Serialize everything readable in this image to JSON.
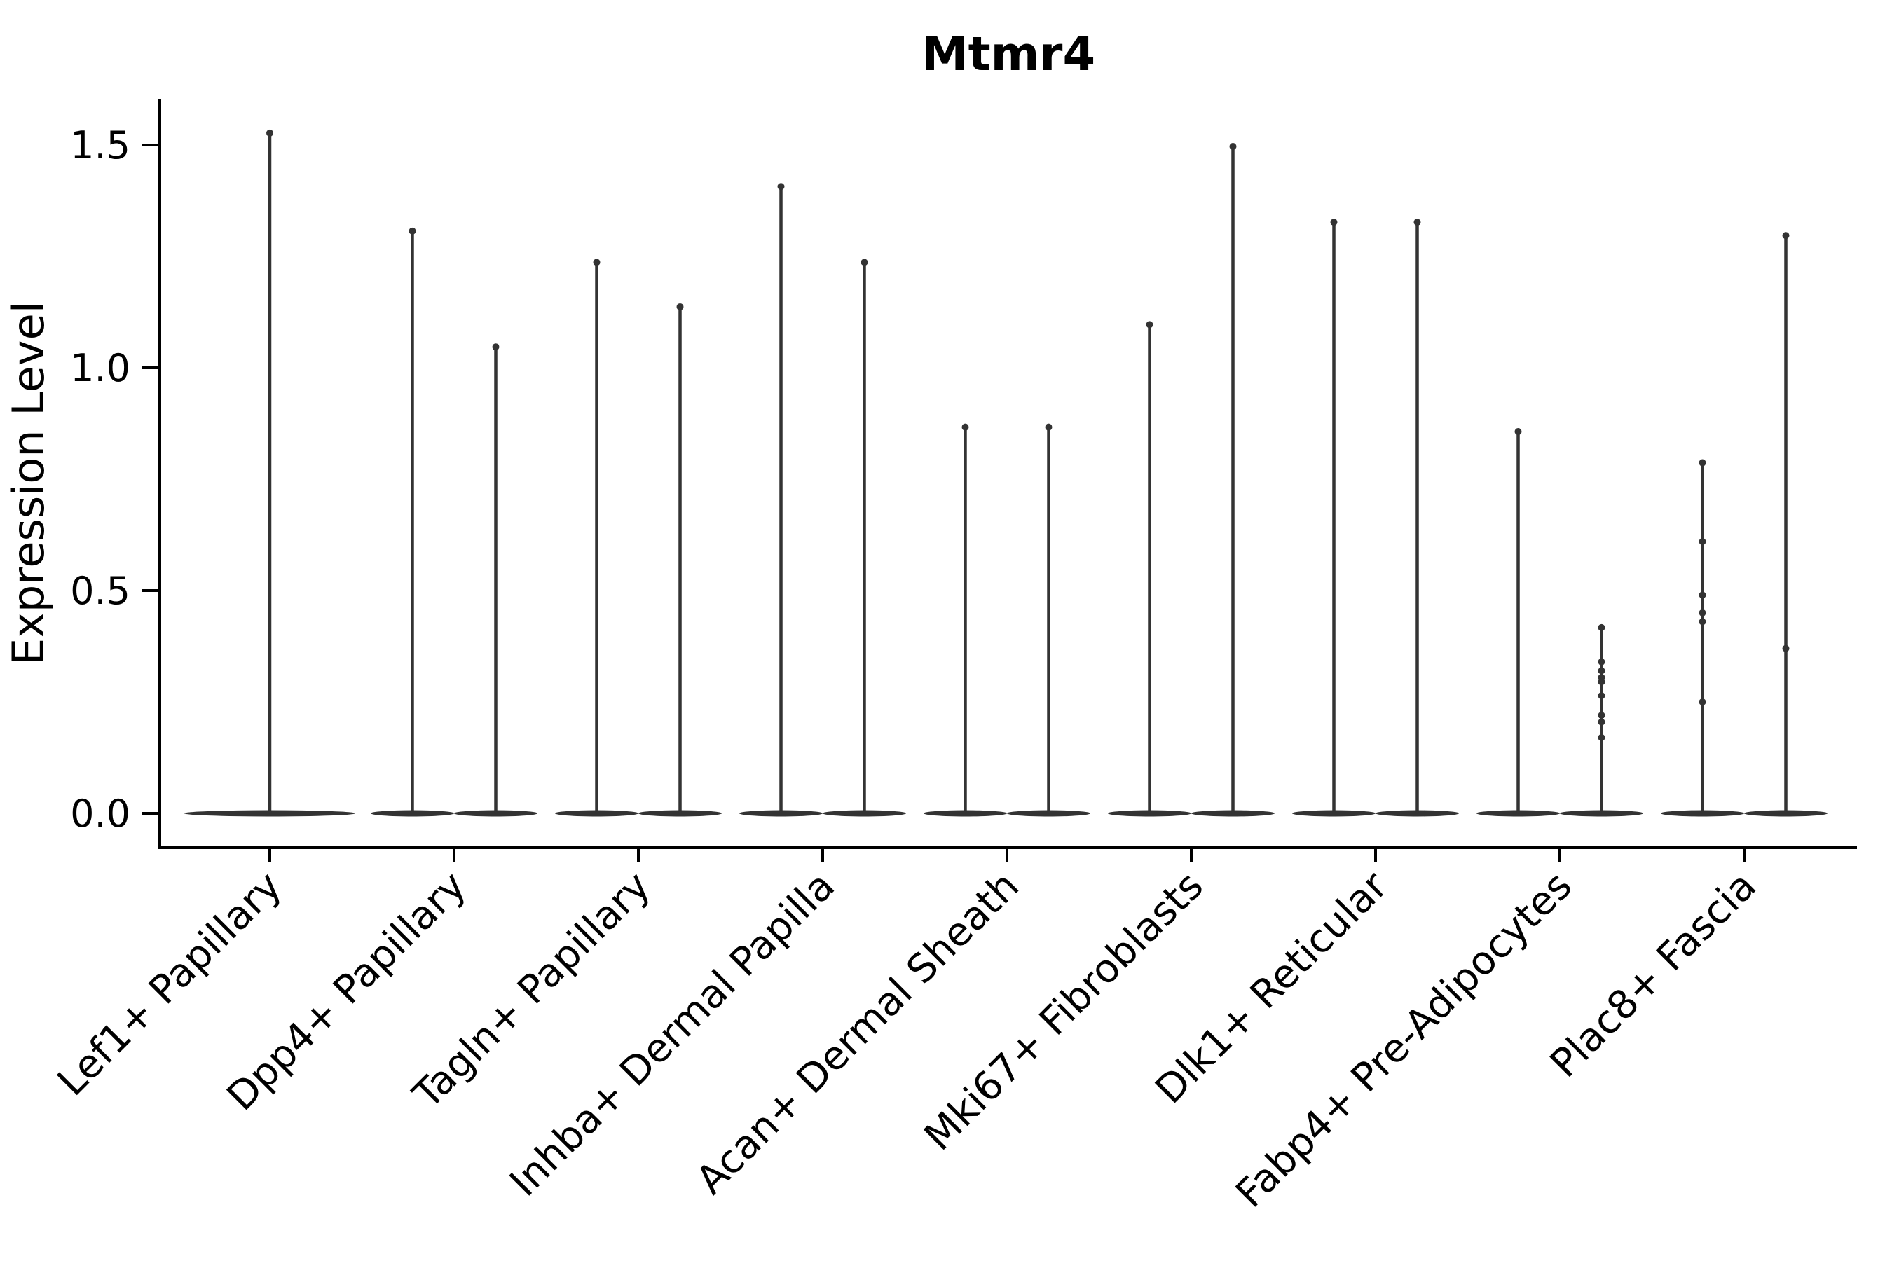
{
  "page": {
    "background": "#ffffff"
  },
  "colors": {
    "ink": "#000000",
    "violin": "#333333",
    "background": "#ffffff"
  },
  "chart_data": {
    "type": "violin",
    "title": "Mtmr4",
    "xlabel": "",
    "ylabel": "Expression Level",
    "yticks": [
      "0.0",
      "0.5",
      "1.0",
      "1.5"
    ],
    "ytick_values": [
      0.0,
      0.5,
      1.0,
      1.5
    ],
    "ylim": [
      -0.08,
      1.6
    ],
    "grid": false,
    "legend": "none",
    "style_note": "Seurat-style VlnPlot: dark charcoal violins collapsed to a flat sliver at 0 with hair-thin density tails up to the max value; axes despined on top/right; x labels rotated 45 degrees",
    "categories": [
      "Lef1+ Papillary",
      "Dpp4+ Papillary",
      "Tagln+ Papillary",
      "Inhba+ Dermal Papilla",
      "Acan+ Dermal Sheath",
      "Mki67+ Fibroblasts",
      "Dlk1+ Reticular",
      "Fabp4+ Pre-Adipocytes",
      "Plac8+ Fascia"
    ],
    "violins": [
      {
        "category": "Lef1+ Papillary",
        "slot": "single",
        "max": 1.53,
        "dots": []
      },
      {
        "category": "Dpp4+ Papillary",
        "slot": "left",
        "max": 1.31,
        "dots": []
      },
      {
        "category": "Dpp4+ Papillary",
        "slot": "right",
        "max": 1.05,
        "dots": []
      },
      {
        "category": "Tagln+ Papillary",
        "slot": "left",
        "max": 1.24,
        "dots": []
      },
      {
        "category": "Tagln+ Papillary",
        "slot": "right",
        "max": 1.14,
        "dots": []
      },
      {
        "category": "Inhba+ Dermal Papilla",
        "slot": "left",
        "max": 1.41,
        "dots": []
      },
      {
        "category": "Inhba+ Dermal Papilla",
        "slot": "right",
        "max": 1.24,
        "dots": []
      },
      {
        "category": "Acan+ Dermal Sheath",
        "slot": "left",
        "max": 0.87,
        "dots": []
      },
      {
        "category": "Acan+ Dermal Sheath",
        "slot": "right",
        "max": 0.87,
        "dots": []
      },
      {
        "category": "Mki67+ Fibroblasts",
        "slot": "left",
        "max": 1.1,
        "dots": []
      },
      {
        "category": "Mki67+ Fibroblasts",
        "slot": "right",
        "max": 1.5,
        "dots": []
      },
      {
        "category": "Dlk1+ Reticular",
        "slot": "left",
        "max": 1.33,
        "dots": []
      },
      {
        "category": "Dlk1+ Reticular",
        "slot": "right",
        "max": 1.33,
        "dots": []
      },
      {
        "category": "Fabp4+ Pre-Adipocytes",
        "slot": "left",
        "max": 0.86,
        "dots": []
      },
      {
        "category": "Fabp4+ Pre-Adipocytes",
        "slot": "right",
        "max": 0.42,
        "dots": [
          0.34,
          0.32,
          0.305,
          0.295,
          0.264,
          0.22,
          0.205,
          0.17
        ]
      },
      {
        "category": "Plac8+ Fascia",
        "slot": "left",
        "max": 0.79,
        "dots": [
          0.61,
          0.49,
          0.45,
          0.43,
          0.25
        ]
      },
      {
        "category": "Plac8+ Fascia",
        "slot": "right",
        "max": 1.3,
        "dots": [
          0.37
        ]
      }
    ]
  }
}
